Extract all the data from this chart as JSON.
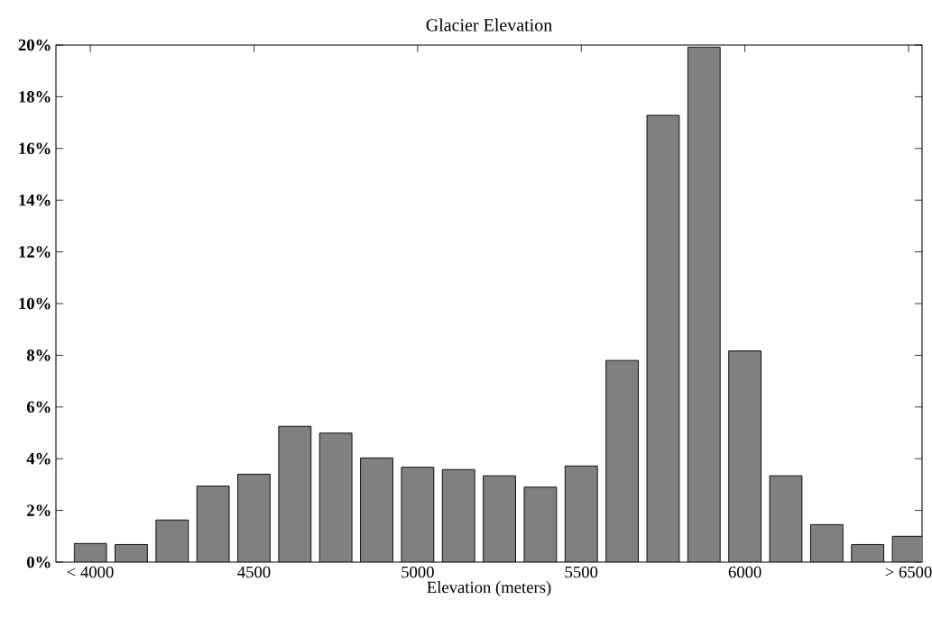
{
  "chart_data": {
    "type": "bar",
    "title": "Glacier Elevation",
    "xlabel": "Elevation (meters)",
    "categories": [
      "< 4000",
      null,
      null,
      null,
      "4500",
      null,
      null,
      null,
      "5000",
      null,
      null,
      null,
      "5500",
      null,
      null,
      null,
      "6000",
      null,
      null,
      null,
      "> 6500"
    ],
    "values": [
      0.72,
      0.68,
      1.63,
      2.94,
      3.4,
      5.25,
      4.99,
      4.03,
      3.67,
      3.58,
      3.34,
      2.9,
      3.72,
      7.8,
      17.28,
      19.92,
      8.17,
      3.34,
      1.45,
      0.68,
      1.0
    ],
    "color": "#808080",
    "ylim": [
      0,
      20
    ],
    "yticks": [
      {
        "value": 0,
        "label": "0%"
      },
      {
        "value": 2,
        "label": "2%"
      },
      {
        "value": 4,
        "label": "4%"
      },
      {
        "value": 6,
        "label": "6%"
      },
      {
        "value": 8,
        "label": "8%"
      },
      {
        "value": 10,
        "label": "10%"
      },
      {
        "value": 12,
        "label": "12%"
      },
      {
        "value": 14,
        "label": "14%"
      },
      {
        "value": 16,
        "label": "16%"
      },
      {
        "value": 18,
        "label": "18%"
      },
      {
        "value": 20,
        "label": "20%"
      }
    ]
  }
}
